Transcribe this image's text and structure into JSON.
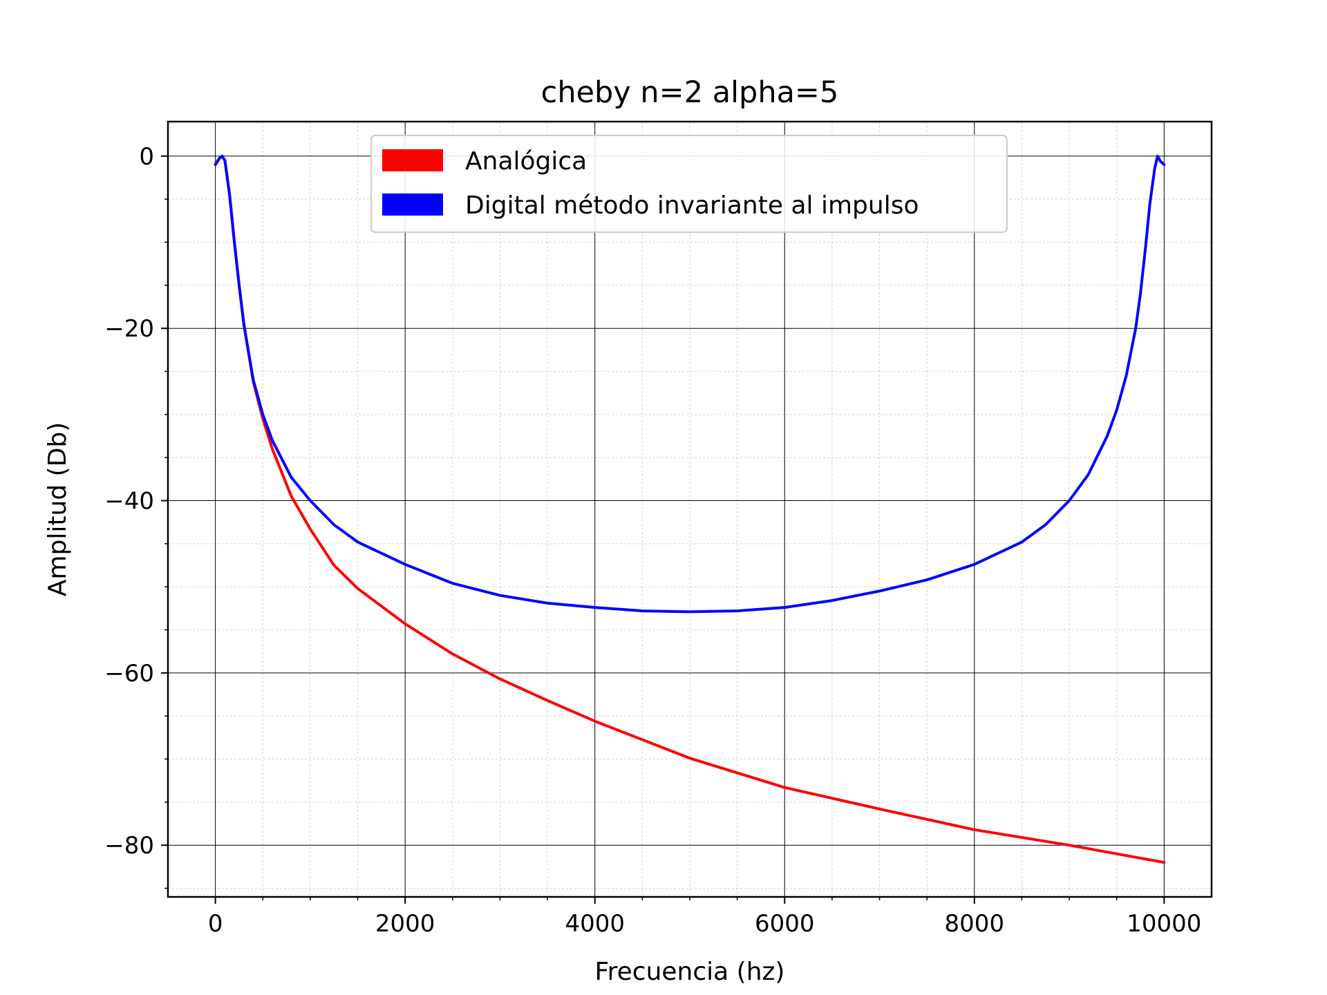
{
  "chart_data": {
    "type": "line",
    "title": "cheby n=2 alpha=5",
    "xlabel": "Frecuencia (hz)",
    "ylabel": "Amplitud (Db)",
    "xlim": [
      -500,
      10500
    ],
    "ylim": [
      -86,
      4
    ],
    "x_ticks": [
      0,
      2000,
      4000,
      6000,
      8000,
      10000
    ],
    "y_ticks": [
      0,
      -20,
      -40,
      -60,
      -80
    ],
    "x_tick_labels": [
      "0",
      "2000",
      "4000",
      "6000",
      "8000",
      "10000"
    ],
    "y_tick_labels": [
      "0",
      "−20",
      "−40",
      "−60",
      "−80"
    ],
    "grid": true,
    "minor_grid": true,
    "legend_position": "top-center",
    "series": [
      {
        "name": "Analógica",
        "color": "#ff0000",
        "x": [
          0,
          40,
          70,
          100,
          150,
          200,
          250,
          300,
          400,
          500,
          600,
          800,
          1000,
          1250,
          1500,
          2000,
          2500,
          3000,
          3500,
          4000,
          5000,
          6000,
          7000,
          8000,
          9000,
          10000
        ],
        "y": [
          -1.0,
          -0.3,
          0.0,
          -0.5,
          -4.5,
          -10.0,
          -15.0,
          -19.5,
          -26.2,
          -30.5,
          -34.0,
          -39.5,
          -43.3,
          -47.5,
          -50.2,
          -54.3,
          -57.8,
          -60.7,
          -63.2,
          -65.6,
          -69.9,
          -73.3,
          -75.8,
          -78.2,
          -80.0,
          -82.0
        ]
      },
      {
        "name": "Digital método invariante al impulso",
        "color": "#0000ff",
        "x": [
          0,
          40,
          70,
          100,
          150,
          200,
          250,
          300,
          400,
          500,
          600,
          800,
          1000,
          1250,
          1500,
          2000,
          2500,
          3000,
          3500,
          4000,
          4500,
          5000,
          5500,
          6000,
          6500,
          7000,
          7500,
          8000,
          8500,
          8750,
          9000,
          9200,
          9400,
          9500,
          9600,
          9700,
          9750,
          9800,
          9850,
          9900,
          9930,
          9960,
          10000
        ],
        "y": [
          -1.0,
          -0.3,
          0.0,
          -0.5,
          -4.5,
          -10.0,
          -15.0,
          -19.5,
          -26.0,
          -30.0,
          -33.0,
          -37.3,
          -40.0,
          -42.8,
          -44.8,
          -47.4,
          -49.6,
          -51.0,
          -51.9,
          -52.4,
          -52.8,
          -52.9,
          -52.8,
          -52.4,
          -51.6,
          -50.5,
          -49.2,
          -47.4,
          -44.8,
          -42.8,
          -40.0,
          -37.0,
          -32.5,
          -29.5,
          -25.5,
          -20.0,
          -16.0,
          -11.0,
          -5.5,
          -1.5,
          0.0,
          -0.6,
          -1.0
        ]
      }
    ]
  }
}
